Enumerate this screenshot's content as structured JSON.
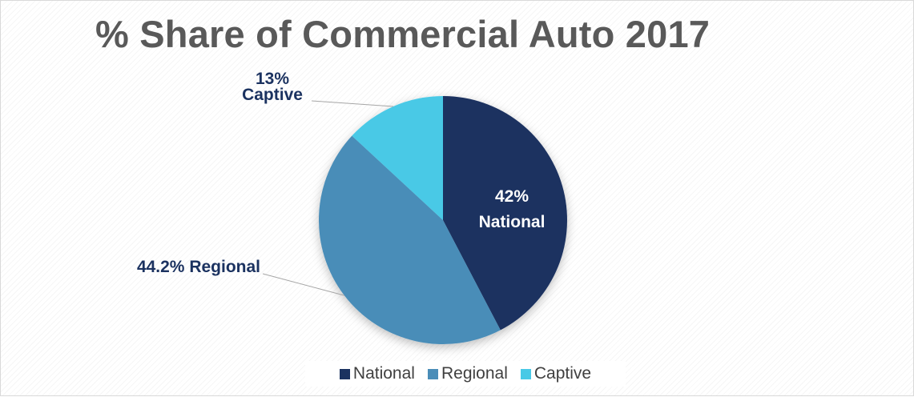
{
  "chart_data": {
    "type": "pie",
    "title": "% Share of Commercial Auto 2017",
    "categories": [
      "National",
      "Regional",
      "Captive"
    ],
    "values": [
      42,
      44.2,
      13
    ],
    "colors": [
      "#1b3260",
      "#4a8db8",
      "#48c9e6"
    ],
    "slice_labels": [
      {
        "pct": "42%",
        "name": "National",
        "color": "#ffffff"
      },
      {
        "pct": "44.2% Regional",
        "name": "",
        "color": "#1b3260"
      },
      {
        "pct": "13%",
        "name": "Captive",
        "color": "#1b3260"
      }
    ],
    "legend": {
      "position": "bottom",
      "items": [
        "National",
        "Regional",
        "Captive"
      ]
    }
  }
}
